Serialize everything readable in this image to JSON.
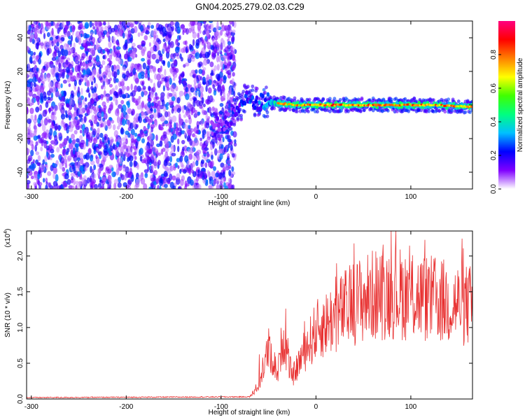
{
  "title": "GN04.2025.279.02.03.C29",
  "chart_data": [
    {
      "type": "heatmap",
      "xlabel": "Height of straight line (km)",
      "ylabel": "Frequency (Hz)",
      "xlim": [
        -305,
        165
      ],
      "ylim": [
        -50,
        50
      ],
      "xticks": [
        -300,
        -200,
        -100,
        0,
        100
      ],
      "yticks": [
        -40,
        -20,
        0,
        20,
        40
      ],
      "colorbar": {
        "label": "Normalized spectral amplitude",
        "range": [
          0,
          1
        ],
        "ticks": [
          "0.0",
          "0.2",
          "0.4",
          "0.6",
          "0.8"
        ],
        "colormap": "rainbow",
        "stops": [
          "#ffffff",
          "#8000ff",
          "#0000ff",
          "#00c0ff",
          "#00ff80",
          "#40ff00",
          "#ffff00",
          "#ff8000",
          "#ff0000",
          "#ff0080"
        ]
      },
      "ridge": [
        {
          "x": -110,
          "y": -15,
          "amp": 0.3
        },
        {
          "x": -95,
          "y": -10,
          "amp": 0.35
        },
        {
          "x": -85,
          "y": -4,
          "amp": 0.5
        },
        {
          "x": -75,
          "y": 3,
          "amp": 0.55
        },
        {
          "x": -60,
          "y": 2,
          "amp": 0.6
        },
        {
          "x": -40,
          "y": 1,
          "amp": 0.85
        },
        {
          "x": -20,
          "y": 0,
          "amp": 0.85
        },
        {
          "x": 0,
          "y": 0,
          "amp": 0.9
        },
        {
          "x": 40,
          "y": 0,
          "amp": 0.9
        },
        {
          "x": 80,
          "y": 0,
          "amp": 0.9
        },
        {
          "x": 120,
          "y": 0,
          "amp": 0.9
        },
        {
          "x": 165,
          "y": -1,
          "amp": 0.85
        }
      ],
      "noise_region": {
        "x_from": -305,
        "x_to": -85,
        "amp": [
          0.05,
          0.3
        ]
      }
    },
    {
      "type": "line",
      "xlabel": "Height of straight line (km)",
      "ylabel": "SNR (10 * v/v)",
      "yscale_label": "(x10",
      "yscale_exp": "4",
      "xlim": [
        -305,
        165
      ],
      "ylim": [
        0,
        2.35
      ],
      "xticks": [
        -300,
        -200,
        -100,
        0,
        100
      ],
      "yticks": [
        "0.0",
        "0.5",
        "1.0",
        "1.5",
        "2.0"
      ],
      "series": [
        {
          "color": "#e83030",
          "envelope": [
            {
              "x": -305,
              "y": 0.02
            },
            {
              "x": -70,
              "y": 0.03
            },
            {
              "x": -60,
              "y": 0.2
            },
            {
              "x": -50,
              "y": 0.7
            },
            {
              "x": -40,
              "y": 0.35
            },
            {
              "x": -35,
              "y": 0.9
            },
            {
              "x": -25,
              "y": 0.3
            },
            {
              "x": -15,
              "y": 0.6
            },
            {
              "x": 0,
              "y": 0.95
            },
            {
              "x": 20,
              "y": 1.15
            },
            {
              "x": 40,
              "y": 1.35
            },
            {
              "x": 60,
              "y": 1.45
            },
            {
              "x": 80,
              "y": 1.5
            },
            {
              "x": 100,
              "y": 1.45
            },
            {
              "x": 120,
              "y": 1.4
            },
            {
              "x": 140,
              "y": 1.35
            },
            {
              "x": 165,
              "y": 1.3
            }
          ]
        }
      ]
    }
  ]
}
